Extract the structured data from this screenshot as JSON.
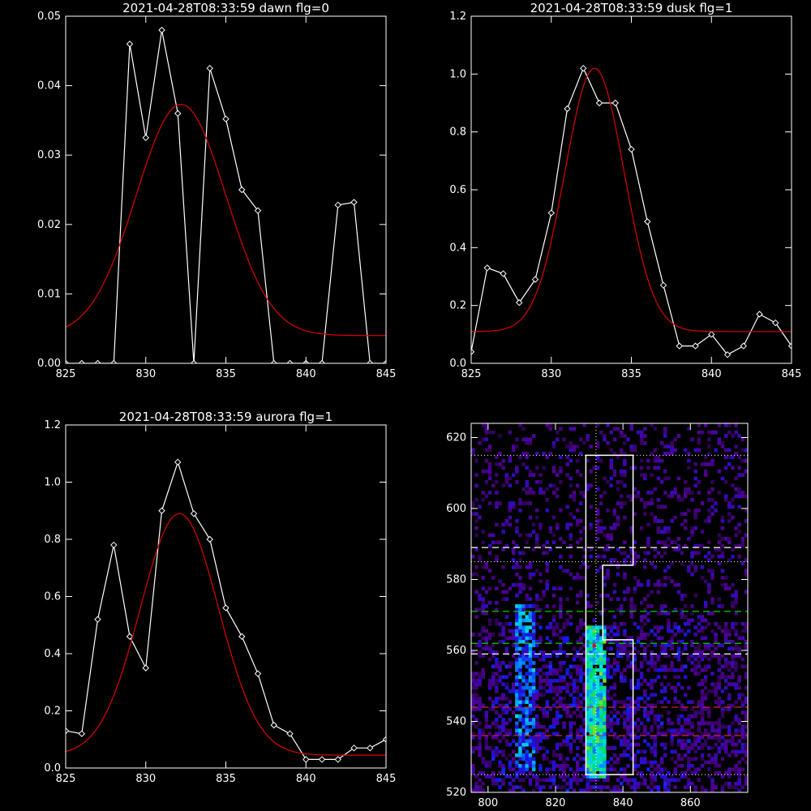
{
  "colors": {
    "background": "#000000",
    "axes": "#ffffff",
    "data_line": "#ffffff",
    "fit_line": "#dd0000"
  },
  "chart_data": [
    {
      "type": "line",
      "title": "2021-04-28T08:33:59 dawn flg=0",
      "xlim": [
        825,
        845
      ],
      "ylim": [
        0,
        0.05
      ],
      "xticks": [
        825,
        830,
        835,
        840,
        845
      ],
      "yticks": [
        0.0,
        0.01,
        0.02,
        0.03,
        0.04,
        0.05
      ],
      "ytick_labels": [
        "0.00",
        "0.01",
        "0.02",
        "0.03",
        "0.04",
        "0.05"
      ],
      "series": [
        {
          "marker": "diamond",
          "color": "#ffffff",
          "x": [
            825,
            826,
            827,
            828,
            829,
            830,
            831,
            832,
            833,
            834,
            835,
            836,
            837,
            838,
            839,
            840,
            841,
            842,
            843,
            844,
            845
          ],
          "y": [
            0,
            0,
            0,
            0,
            0.046,
            0.0325,
            0.048,
            0.036,
            0,
            0.0425,
            0.0352,
            0.025,
            0.022,
            0,
            0,
            0,
            0,
            0.0228,
            0.0232,
            0,
            0
          ]
        },
        {
          "marker": "none",
          "color": "#dd0000",
          "gauss": {
            "peak": 0.0373,
            "center": 832.2,
            "sigma": 2.8,
            "offset": 0.004
          }
        }
      ]
    },
    {
      "type": "line",
      "title": "2021-04-28T08:33:59 dusk flg=1",
      "xlim": [
        825,
        845
      ],
      "ylim": [
        0,
        1.2
      ],
      "xticks": [
        825,
        830,
        835,
        840,
        845
      ],
      "yticks": [
        0,
        0.2,
        0.4,
        0.6,
        0.8,
        1.0,
        1.2
      ],
      "ytick_labels": [
        "0.0",
        "0.2",
        "0.4",
        "0.6",
        "0.8",
        "1.0",
        "1.2"
      ],
      "series": [
        {
          "marker": "diamond",
          "color": "#ffffff",
          "x": [
            825,
            826,
            827,
            828,
            829,
            830,
            831,
            832,
            833,
            834,
            835,
            836,
            837,
            838,
            839,
            840,
            841,
            842,
            843,
            844,
            845
          ],
          "y": [
            0.04,
            0.33,
            0.31,
            0.21,
            0.29,
            0.52,
            0.88,
            1.02,
            0.9,
            0.9,
            0.74,
            0.49,
            0.27,
            0.06,
            0.06,
            0.1,
            0.03,
            0.06,
            0.17,
            0.14,
            0.06
          ]
        },
        {
          "marker": "none",
          "color": "#dd0000",
          "gauss": {
            "peak": 1.02,
            "center": 832.7,
            "sigma": 1.85,
            "offset": 0.11
          }
        }
      ]
    },
    {
      "type": "line",
      "title": "2021-04-28T08:33:59 aurora flg=1",
      "xlim": [
        825,
        845
      ],
      "ylim": [
        0,
        1.2
      ],
      "xticks": [
        825,
        830,
        835,
        840,
        845
      ],
      "yticks": [
        0,
        0.2,
        0.4,
        0.6,
        0.8,
        1.0,
        1.2
      ],
      "ytick_labels": [
        "0.0",
        "0.2",
        "0.4",
        "0.6",
        "0.8",
        "1.0",
        "1.2"
      ],
      "series": [
        {
          "marker": "diamond",
          "color": "#ffffff",
          "x": [
            825,
            826,
            827,
            828,
            829,
            830,
            831,
            832,
            833,
            834,
            835,
            836,
            837,
            838,
            839,
            840,
            841,
            842,
            843,
            844,
            845
          ],
          "y": [
            0.13,
            0.12,
            0.52,
            0.78,
            0.46,
            0.35,
            0.9,
            1.07,
            0.89,
            0.8,
            0.56,
            0.46,
            0.33,
            0.15,
            0.12,
            0.03,
            0.03,
            0.03,
            0.07,
            0.07,
            0.1
          ]
        },
        {
          "marker": "none",
          "color": "#dd0000",
          "gauss": {
            "peak": 0.89,
            "center": 832.1,
            "sigma": 2.45,
            "offset": 0.045
          }
        }
      ]
    },
    {
      "type": "heatmap",
      "title": "",
      "xlim": [
        795,
        877
      ],
      "ylim": [
        520,
        624
      ],
      "xticks": [
        800,
        820,
        840,
        860
      ],
      "yticks": [
        520,
        540,
        560,
        580,
        600,
        620
      ],
      "peak": {
        "x": 831,
        "y": 561
      },
      "bright_band": {
        "x_center": 832,
        "y_from": 524,
        "y_to": 566
      },
      "outline_polygon": [
        [
          829,
          525
        ],
        [
          843,
          525
        ],
        [
          843,
          563
        ],
        [
          834,
          563
        ],
        [
          834,
          584
        ],
        [
          843,
          584
        ],
        [
          843,
          615
        ],
        [
          829,
          615
        ]
      ],
      "center_line_x": 832,
      "dotted_lines_y": [
        525,
        585,
        615
      ],
      "dashed_lines": [
        {
          "y": 589,
          "color": "#ffffff"
        },
        {
          "y": 571,
          "color": "#00cc00"
        },
        {
          "y": 562,
          "color": "#00cc00"
        },
        {
          "y": 559,
          "color": "#ffffff"
        },
        {
          "y": 544,
          "color": "#cc2244"
        },
        {
          "y": 536,
          "color": "#cc2244"
        }
      ]
    }
  ]
}
